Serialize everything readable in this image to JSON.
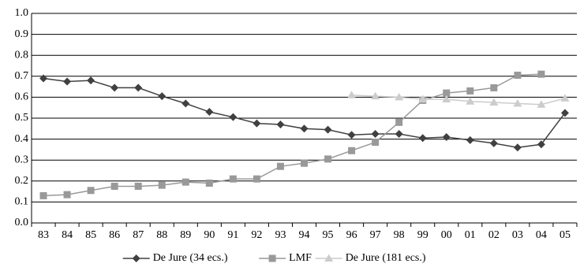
{
  "chart_data": {
    "type": "line",
    "categories": [
      "83",
      "84",
      "85",
      "86",
      "87",
      "88",
      "89",
      "90",
      "91",
      "92",
      "93",
      "94",
      "95",
      "96",
      "97",
      "98",
      "99",
      "00",
      "01",
      "02",
      "03",
      "04",
      "05"
    ],
    "series": [
      {
        "name": "De Jure (34 ecs.)",
        "color": "#404040",
        "marker": "diamond",
        "values": [
          0.69,
          0.675,
          0.68,
          0.645,
          0.645,
          0.605,
          0.57,
          0.53,
          0.505,
          0.475,
          0.47,
          0.45,
          0.445,
          0.42,
          0.425,
          0.425,
          0.405,
          0.41,
          0.395,
          0.38,
          0.36,
          0.375,
          0.525
        ]
      },
      {
        "name": "LMF",
        "color": "#999999",
        "marker": "square",
        "values": [
          0.13,
          0.135,
          0.155,
          0.175,
          0.175,
          0.18,
          0.195,
          0.19,
          0.21,
          0.21,
          0.27,
          0.285,
          0.305,
          0.345,
          0.385,
          0.48,
          0.585,
          0.62,
          0.63,
          0.645,
          0.705,
          0.71,
          null
        ]
      },
      {
        "name": "De Jure (181 ecs.)",
        "color": "#cccccc",
        "marker": "triangle",
        "values": [
          null,
          null,
          null,
          null,
          null,
          null,
          null,
          null,
          null,
          null,
          null,
          null,
          null,
          0.61,
          0.605,
          0.6,
          0.59,
          0.59,
          0.58,
          0.575,
          0.57,
          0.565,
          0.595
        ]
      }
    ],
    "ylim": [
      0,
      1
    ],
    "yticks": [
      {
        "value": 0,
        "label": "0.0"
      },
      0.1,
      0.2,
      0.3,
      0.4,
      0.5,
      0.6,
      0.7,
      0.8,
      0.9,
      {
        "value": 1,
        "label": "1.0"
      }
    ],
    "grid": true,
    "legend": "bottom"
  }
}
